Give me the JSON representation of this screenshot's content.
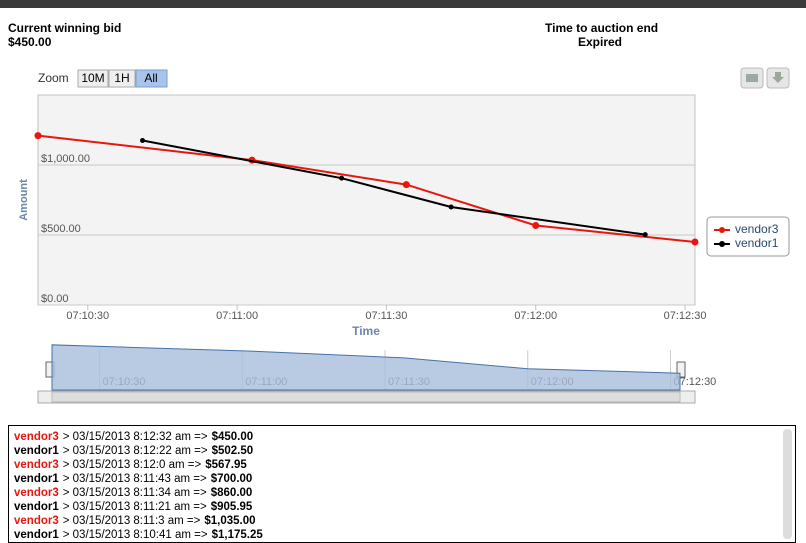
{
  "header": {
    "bid_label": "Current winning bid",
    "bid_value": "$450.00",
    "time_label": "Time to auction end",
    "time_value": "Expired"
  },
  "chart_data": {
    "type": "line",
    "zoom_label": "Zoom",
    "zoom_buttons": [
      "10M",
      "1H",
      "All"
    ],
    "x_label": "Time",
    "y_label": "Amount",
    "xlim": [
      "07:10:20",
      "07:12:32"
    ],
    "xticks": [
      "07:10:30",
      "07:11:00",
      "07:11:30",
      "07:12:00",
      "07:12:30"
    ],
    "ylim": [
      0,
      1500
    ],
    "yticks": [
      {
        "value": 0,
        "label": "$0.00"
      },
      {
        "value": 500,
        "label": "$500.00"
      },
      {
        "value": 1000,
        "label": "$1,000.00"
      }
    ],
    "grid": true,
    "series": [
      {
        "name": "vendor3",
        "color": "#e8170e",
        "x": [
          "07:10:20",
          "07:11:03",
          "07:11:34",
          "07:12:00",
          "07:12:32"
        ],
        "values": [
          1210,
          1035,
          860,
          567.95,
          450
        ]
      },
      {
        "name": "vendor1",
        "color": "#000000",
        "x": [
          "07:10:41",
          "07:11:21",
          "07:11:43",
          "07:12:22"
        ],
        "values": [
          1175.25,
          905.95,
          700,
          502.5
        ]
      }
    ]
  },
  "log": [
    {
      "vendor": "vendor3",
      "text": "> 03/15/2013 8:12:32 am =>",
      "amount": "$450.00"
    },
    {
      "vendor": "vendor1",
      "text": "> 03/15/2013 8:12:22 am =>",
      "amount": "$502.50"
    },
    {
      "vendor": "vendor3",
      "text": "> 03/15/2013 8:12:0 am =>",
      "amount": "$567.95"
    },
    {
      "vendor": "vendor1",
      "text": "> 03/15/2013 8:11:43 am =>",
      "amount": "$700.00"
    },
    {
      "vendor": "vendor3",
      "text": "> 03/15/2013 8:11:34 am =>",
      "amount": "$860.00"
    },
    {
      "vendor": "vendor1",
      "text": "> 03/15/2013 8:11:21 am =>",
      "amount": "$905.95"
    },
    {
      "vendor": "vendor3",
      "text": "> 03/15/2013 8:11:3 am =>",
      "amount": "$1,035.00"
    },
    {
      "vendor": "vendor1",
      "text": "> 03/15/2013 8:10:41 am =>",
      "amount": "$1,175.25"
    }
  ]
}
